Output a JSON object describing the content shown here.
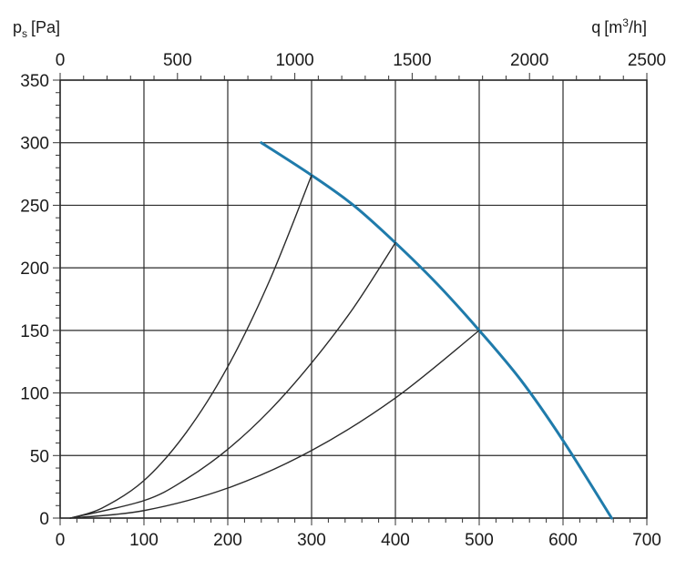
{
  "chart_data": {
    "type": "line",
    "title": "",
    "ylabel": {
      "symbol": "p",
      "subscript": "s",
      "unit": "[Pa]"
    },
    "x2label": {
      "symbol": "q",
      "unit_prefix": "[m",
      "superscript": "3",
      "unit_suffix": "/h]"
    },
    "xlim": [
      0,
      700
    ],
    "ylim": [
      0,
      350
    ],
    "x2lim": [
      0,
      2500
    ],
    "x_ticks": [
      0,
      100,
      200,
      300,
      400,
      500,
      600,
      700
    ],
    "y_ticks": [
      0,
      50,
      100,
      150,
      200,
      250,
      300,
      350
    ],
    "x2_ticks": [
      0,
      500,
      1000,
      1500,
      2000,
      2500
    ],
    "grid": true,
    "series": [
      {
        "color": "#1f7bab",
        "points": [
          [
            240,
            300
          ],
          [
            300,
            274
          ],
          [
            350,
            250
          ],
          [
            400,
            220
          ],
          [
            450,
            187
          ],
          [
            500,
            150
          ],
          [
            550,
            110
          ],
          [
            600,
            62
          ],
          [
            658,
            0
          ]
        ]
      },
      {
        "color": "#2a2a2a",
        "points": [
          [
            12,
            0
          ],
          [
            50,
            8
          ],
          [
            100,
            30
          ],
          [
            150,
            68
          ],
          [
            200,
            121
          ],
          [
            250,
            190
          ],
          [
            300,
            274
          ]
        ]
      },
      {
        "color": "#2a2a2a",
        "points": [
          [
            12,
            0
          ],
          [
            100,
            14
          ],
          [
            150,
            31
          ],
          [
            200,
            55
          ],
          [
            250,
            86
          ],
          [
            300,
            124
          ],
          [
            350,
            168
          ],
          [
            400,
            220
          ]
        ]
      },
      {
        "color": "#2a2a2a",
        "points": [
          [
            12,
            0
          ],
          [
            100,
            6
          ],
          [
            200,
            24
          ],
          [
            300,
            54
          ],
          [
            400,
            96
          ],
          [
            500,
            150
          ]
        ]
      }
    ]
  }
}
